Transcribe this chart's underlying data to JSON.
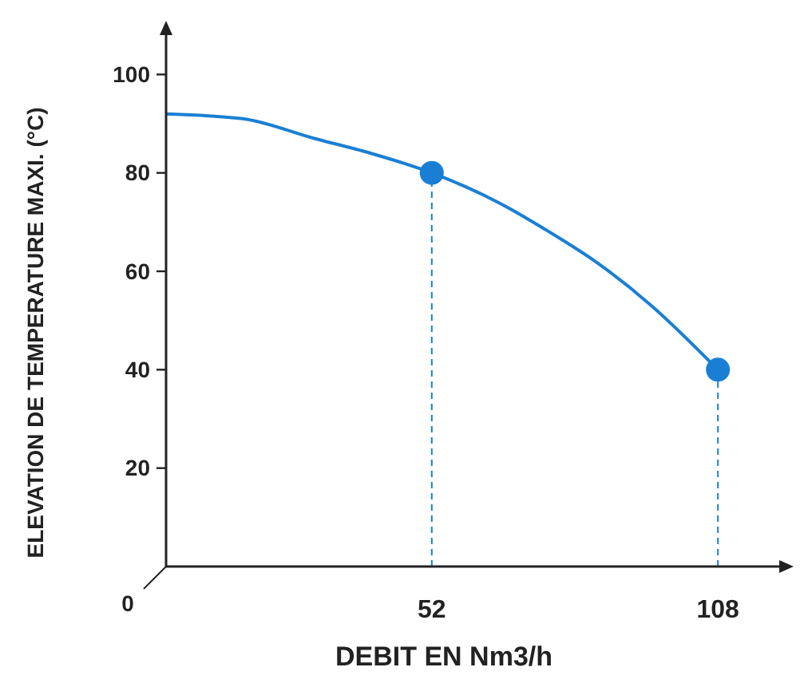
{
  "chart_data": {
    "type": "line",
    "xlabel": "DEBIT EN Nm3/h",
    "ylabel": "ELEVATION DE TEMPERATURE MAXI. (°C)",
    "xlim": [
      0,
      120
    ],
    "ylim": [
      0,
      108
    ],
    "xticks": [
      52,
      108
    ],
    "annotations": [
      "0"
    ],
    "yticks": [
      20,
      40,
      60,
      80,
      100
    ],
    "series": [
      {
        "color": "#1a7fd4",
        "marker": "none",
        "x": [
          0,
          15,
          29,
          40,
          52,
          65,
          75,
          84,
          95,
          108
        ],
        "values": [
          92,
          91,
          87,
          84,
          80,
          74,
          68,
          62,
          53,
          40
        ]
      },
      {
        "type": "scatter",
        "color": "#1a7fd4",
        "marker": "circle",
        "x": [
          52,
          108
        ],
        "values": [
          80,
          40
        ]
      }
    ],
    "ref_lines": [
      {
        "axis": "x",
        "value": 52,
        "color": "#1a7fd4",
        "line_style": "dashed"
      },
      {
        "axis": "x",
        "value": 108,
        "color": "#1a7fd4",
        "line_style": "dashed"
      }
    ],
    "grid": false
  }
}
